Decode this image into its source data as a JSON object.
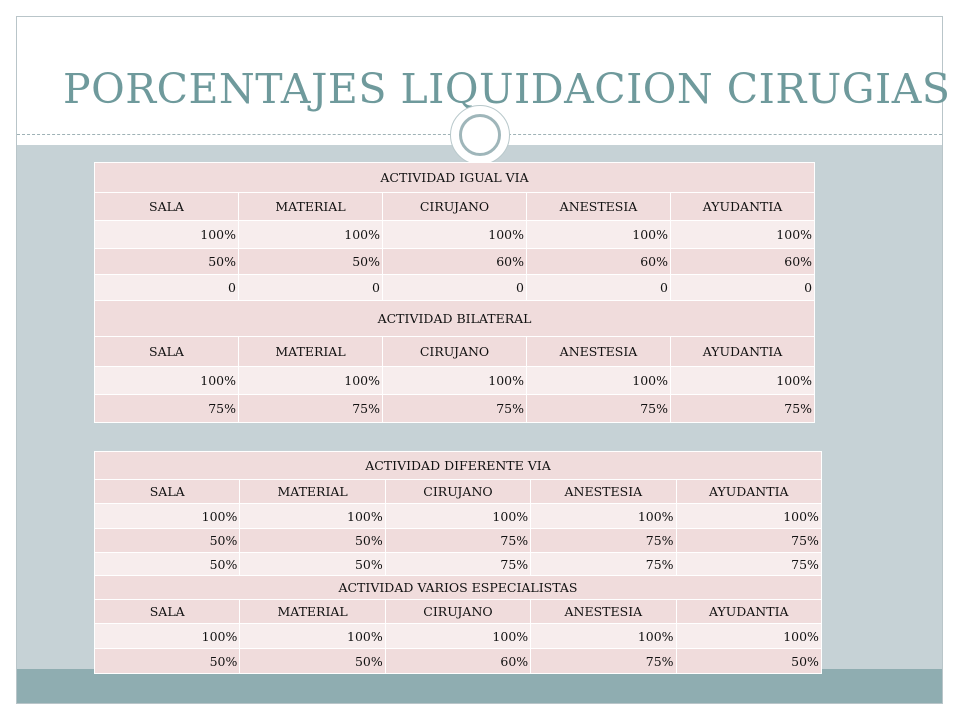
{
  "title": "PORCENTAJES LIQUIDACION CIRUGIAS",
  "colors": {
    "title_text": "#6f9a9c",
    "content_bg": "#c6d2d6",
    "footer_bg": "#8fadb1",
    "row_dark": "#f0dcdc",
    "row_light": "#f7eded"
  },
  "icons": [
    "circle-ornament-icon"
  ],
  "table1": {
    "section1": {
      "heading": "ACTIVIDAD IGUAL VIA",
      "columns": [
        "SALA",
        "MATERIAL",
        "CIRUJANO",
        "ANESTESIA",
        "AYUDANTIA"
      ],
      "rows": [
        [
          "100%",
          "100%",
          "100%",
          "100%",
          "100%"
        ],
        [
          "50%",
          "50%",
          "60%",
          "60%",
          "60%"
        ],
        [
          "0",
          "0",
          "0",
          "0",
          "0"
        ]
      ]
    },
    "section2": {
      "heading": "ACTIVIDAD BILATERAL",
      "columns": [
        "SALA",
        "MATERIAL",
        "CIRUJANO",
        "ANESTESIA",
        "AYUDANTIA"
      ],
      "rows": [
        [
          "100%",
          "100%",
          "100%",
          "100%",
          "100%"
        ],
        [
          "75%",
          "75%",
          "75%",
          "75%",
          "75%"
        ]
      ]
    }
  },
  "table2": {
    "section1": {
      "heading": "ACTIVIDAD DIFERENTE VIA",
      "columns": [
        "SALA",
        "MATERIAL",
        "CIRUJANO",
        "ANESTESIA",
        "AYUDANTIA"
      ],
      "rows": [
        [
          "100%",
          "100%",
          "100%",
          "100%",
          "100%"
        ],
        [
          "50%",
          "50%",
          "75%",
          "75%",
          "75%"
        ],
        [
          "50%",
          "50%",
          "75%",
          "75%",
          "75%"
        ]
      ]
    },
    "section2": {
      "heading": "ACTIVIDAD VARIOS ESPECIALISTAS",
      "columns": [
        "SALA",
        "MATERIAL",
        "CIRUJANO",
        "ANESTESIA",
        "AYUDANTIA"
      ],
      "rows": [
        [
          "100%",
          "100%",
          "100%",
          "100%",
          "100%"
        ],
        [
          "50%",
          "50%",
          "60%",
          "75%",
          "50%"
        ]
      ]
    }
  }
}
